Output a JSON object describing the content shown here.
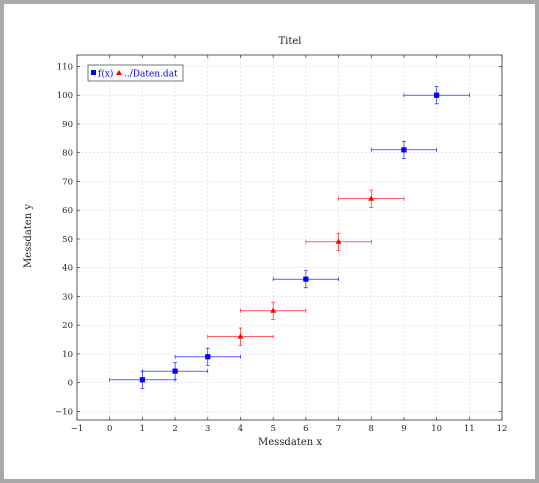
{
  "chart_data": {
    "type": "scatter",
    "title": "Titel",
    "xlabel": "Messdaten x",
    "ylabel": "Messdaten y",
    "xlim": [
      -1,
      12
    ],
    "ylim": [
      -13,
      114
    ],
    "xticks": [
      -1,
      0,
      1,
      2,
      3,
      4,
      5,
      6,
      7,
      8,
      9,
      10,
      11,
      12
    ],
    "yticks": [
      -10,
      0,
      10,
      20,
      30,
      40,
      50,
      60,
      70,
      80,
      90,
      100,
      110
    ],
    "grid": true,
    "legend_position": "top-left",
    "series": [
      {
        "name": "f(x)",
        "color": "#0000ff",
        "marker": "square",
        "points": [
          {
            "x": 1,
            "y": 1,
            "xerr": 1,
            "yerr": 3
          },
          {
            "x": 2,
            "y": 4,
            "xerr": 1,
            "yerr": 3
          },
          {
            "x": 3,
            "y": 9,
            "xerr": 1,
            "yerr": 3
          },
          {
            "x": 6,
            "y": 36,
            "xerr": 1,
            "yerr": 3
          },
          {
            "x": 9,
            "y": 81,
            "xerr": 1,
            "yerr": 3
          },
          {
            "x": 10,
            "y": 100,
            "xerr": 1,
            "yerr": 3
          }
        ]
      },
      {
        "name": "../Daten.dat",
        "color": "#ff0000",
        "marker": "triangle",
        "points": [
          {
            "x": 4,
            "y": 16,
            "xerr": 1,
            "yerr": 3
          },
          {
            "x": 5,
            "y": 25,
            "xerr": 1,
            "yerr": 3
          },
          {
            "x": 7,
            "y": 49,
            "xerr": 1,
            "yerr": 3
          },
          {
            "x": 8,
            "y": 64,
            "xerr": 1,
            "yerr": 3
          }
        ]
      }
    ]
  },
  "legend_text_color": "#0000ff"
}
